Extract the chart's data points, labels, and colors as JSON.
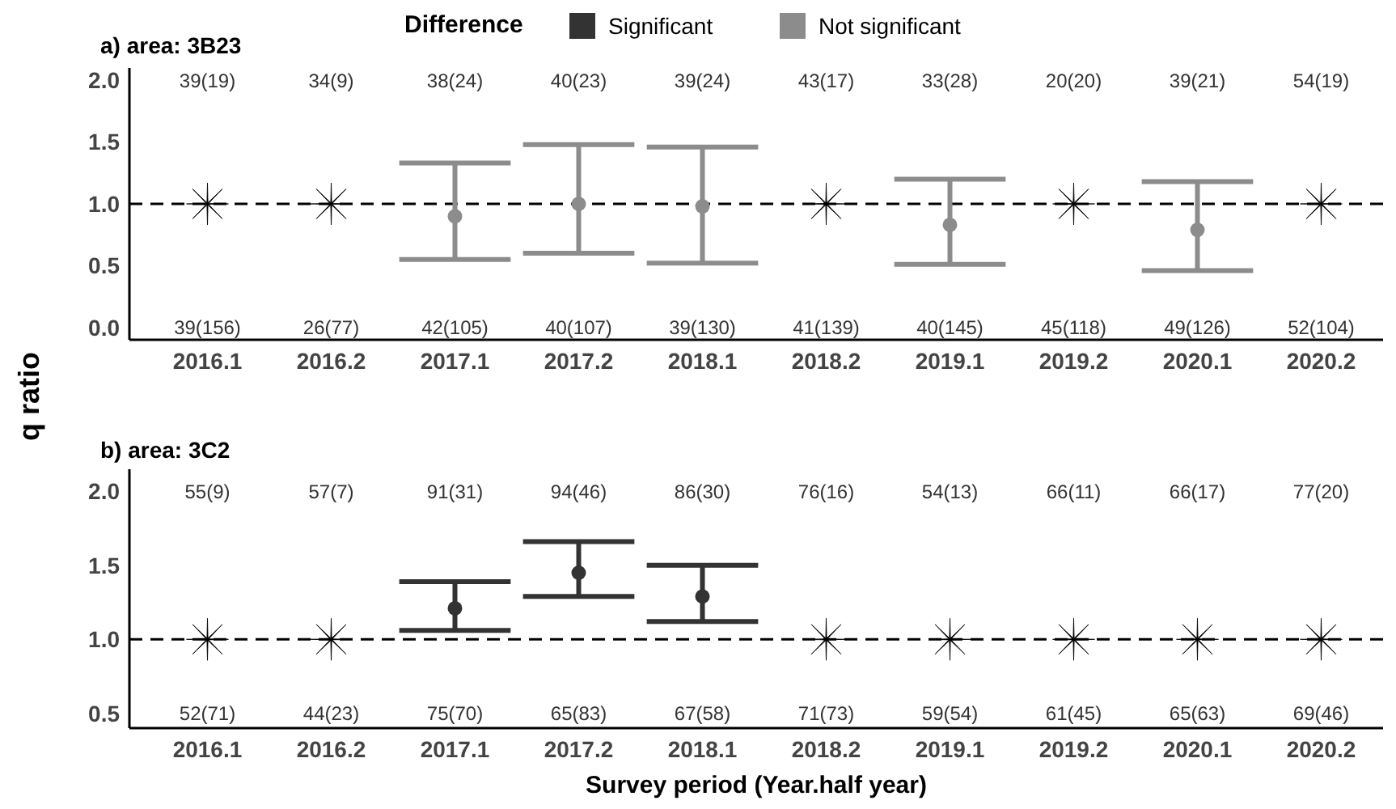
{
  "chart_data": [
    {
      "type": "scatter",
      "title": "a) area: 3B23",
      "ylabel": "q ratio",
      "legend_title": "Difference",
      "legend": "top",
      "categories": [
        "2016.1",
        "2016.2",
        "2017.1",
        "2017.2",
        "2018.1",
        "2018.2",
        "2019.1",
        "2019.2",
        "2020.1",
        "2020.2"
      ],
      "series": [
        {
          "name": "Not significant",
          "color": "#8c8c8c",
          "marker": "circle",
          "values": [
            null,
            null,
            0.9,
            1.0,
            0.98,
            null,
            0.83,
            null,
            0.79,
            null
          ],
          "errors": [
            null,
            null,
            [
              0.55,
              1.33
            ],
            [
              0.6,
              1.48
            ],
            [
              0.52,
              1.46
            ],
            null,
            [
              0.51,
              1.2
            ],
            null,
            [
              0.46,
              1.18
            ],
            null
          ]
        },
        {
          "color": "#000000",
          "marker": "star",
          "values": [
            1,
            1,
            null,
            null,
            null,
            1,
            null,
            1,
            null,
            1
          ]
        }
      ],
      "ylim": [
        -0.1,
        2.1
      ],
      "yticks": [
        {
          "value": 0,
          "label": "0.0"
        },
        {
          "value": 0.5,
          "label": "0.5"
        },
        {
          "value": 1,
          "label": "1.0"
        },
        {
          "value": 1.5,
          "label": "1.5"
        },
        {
          "value": 2,
          "label": "2.0"
        }
      ],
      "ref_lines": [
        {
          "axis": "y",
          "value": 1,
          "color": "#000000",
          "line_style": "dashed"
        }
      ],
      "annotations": [
        "39(19)",
        "34(9)",
        "38(24)",
        "40(23)",
        "39(24)",
        "43(17)",
        "33(28)",
        "20(20)",
        "39(21)",
        "54(19)",
        "39(156)",
        "26(77)",
        "42(105)",
        "40(107)",
        "39(130)",
        "41(139)",
        "40(145)",
        "45(118)",
        "49(126)",
        "52(104)"
      ]
    },
    {
      "type": "scatter",
      "title": "b) area: 3C2",
      "xlabel": "Survey period (Year.half year)",
      "legend": "top",
      "categories": [
        "2016.1",
        "2016.2",
        "2017.1",
        "2017.2",
        "2018.1",
        "2018.2",
        "2019.1",
        "2019.2",
        "2020.1",
        "2020.2"
      ],
      "series": [
        {
          "name": "Significant",
          "color": "#333333",
          "marker": "circle",
          "values": [
            null,
            null,
            1.21,
            1.45,
            1.29,
            null,
            null,
            null,
            null,
            null
          ],
          "errors": [
            null,
            null,
            [
              1.06,
              1.39
            ],
            [
              1.29,
              1.66
            ],
            [
              1.12,
              1.5
            ],
            null,
            null,
            null,
            null,
            null
          ]
        },
        {
          "color": "#000000",
          "marker": "star",
          "values": [
            1,
            1,
            null,
            null,
            null,
            1,
            1,
            1,
            1,
            1
          ]
        }
      ],
      "ylim": [
        0.4,
        2.15
      ],
      "yticks": [
        {
          "value": 0.5,
          "label": "0.5"
        },
        {
          "value": 1,
          "label": "1.0"
        },
        {
          "value": 1.5,
          "label": "1.5"
        },
        {
          "value": 2,
          "label": "2.0"
        }
      ],
      "ref_lines": [
        {
          "axis": "y",
          "value": 1,
          "color": "#000000",
          "line_style": "dashed"
        }
      ],
      "annotations": [
        "55(9)",
        "57(7)",
        "91(31)",
        "94(46)",
        "86(30)",
        "76(16)",
        "54(13)",
        "66(11)",
        "66(17)",
        "77(20)",
        "52(71)",
        "44(23)",
        "75(70)",
        "65(83)",
        "67(58)",
        "71(73)",
        "59(54)",
        "61(45)",
        "65(63)",
        "69(46)"
      ]
    }
  ]
}
